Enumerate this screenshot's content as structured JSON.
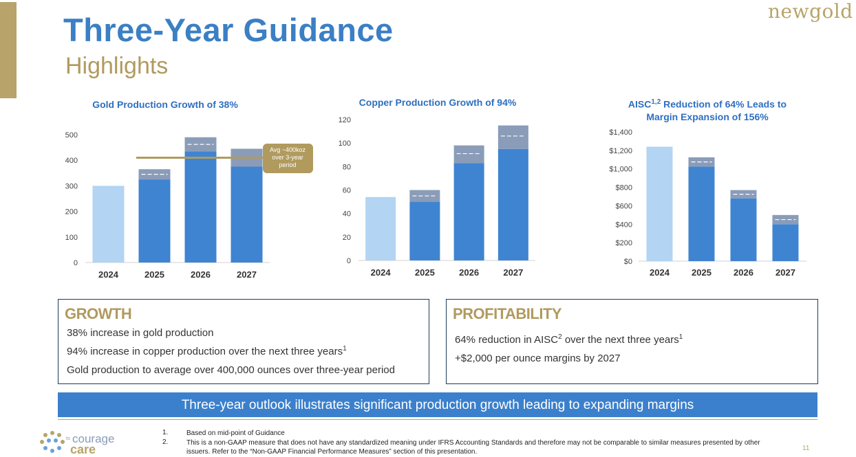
{
  "header": {
    "title": "Three-Year Guidance",
    "subtitle": "Highlights",
    "logo_text": "newgold"
  },
  "chart_data": [
    {
      "type": "bar",
      "title": "Gold Production Growth of 38%",
      "categories": [
        "2024",
        "2025",
        "2026",
        "2027"
      ],
      "ylim": [
        0,
        500
      ],
      "yticks": [
        "0",
        "100",
        "200",
        "300",
        "400",
        "500"
      ],
      "series": [
        {
          "values": [
            300,
            325,
            435,
            375
          ]
        },
        {
          "values": [
            0,
            40,
            55,
            70
          ]
        }
      ],
      "midpoints": [
        null,
        345,
        462,
        410
      ],
      "reference_line": {
        "value": 410,
        "label": [
          "Avg ~400koz",
          "over 3-year",
          "period"
        ]
      },
      "colors": {
        "actual": "#b3d4f2",
        "base": "#3f84d1",
        "range": "#8a9cb8",
        "reference": "#b09a5e"
      }
    },
    {
      "type": "bar",
      "title": "Copper Production Growth of 94%",
      "categories": [
        "2024",
        "2025",
        "2026",
        "2027"
      ],
      "ylim": [
        0,
        120
      ],
      "yticks": [
        "0",
        "20",
        "40",
        "60",
        "80",
        "100",
        "120"
      ],
      "series": [
        {
          "values": [
            54,
            50,
            83,
            95
          ]
        },
        {
          "values": [
            0,
            10,
            15,
            20
          ]
        }
      ],
      "midpoints": [
        null,
        55,
        91,
        106
      ],
      "colors": {
        "actual": "#b3d4f2",
        "base": "#3f84d1",
        "range": "#8a9cb8"
      }
    },
    {
      "type": "bar",
      "title": "AISC1,2 Reduction of 64% Leads to Margin Expansion of 156%",
      "title_lines": [
        "AISC",
        "1,2",
        " Reduction of 64% Leads to",
        "Margin Expansion of 156%"
      ],
      "categories": [
        "2024",
        "2025",
        "2026",
        "2027"
      ],
      "ylim": [
        0,
        1400
      ],
      "yticks": [
        "$0",
        "$200",
        "$400",
        "$600",
        "$800",
        "$1,000",
        "$1,200",
        "$1,400"
      ],
      "series": [
        {
          "values": [
            1240,
            1025,
            680,
            400
          ]
        },
        {
          "values": [
            0,
            100,
            90,
            100
          ]
        }
      ],
      "midpoints": [
        null,
        1075,
        725,
        450
      ],
      "colors": {
        "actual": "#b3d4f2",
        "base": "#3f84d1",
        "range": "#8a9cb8"
      }
    }
  ],
  "growth_box": {
    "heading": "GROWTH",
    "line1": "38% increase in gold production",
    "line2_text": "94% increase in copper production over the next three years",
    "line2_sup": "1",
    "line3": "Gold production to average over 400,000 ounces over three-year period"
  },
  "profit_box": {
    "heading": "PROFITABILITY",
    "line1_a": "64% reduction in AISC",
    "line1_sup1": "2",
    "line1_b": " over the next three years",
    "line1_sup2": "1",
    "line2": "+$2,000 per ounce margins by 2027"
  },
  "banner": "Three-year outlook illustrates significant production growth leading to expanding margins",
  "footnotes": [
    {
      "num": "1.",
      "text": "Based on mid-point of Guidance"
    },
    {
      "num": "2.",
      "text": "This is a non-GAAP measure that does not have any standardized meaning under IFRS Accounting Standards and therefore may not be comparable to similar measures presented by other issuers.  Refer to the “Non-GAAP Financial Performance Measures” section of this presentation."
    }
  ],
  "courage_logo": {
    "small": "to",
    "top": "courage",
    "bottom": "care"
  },
  "page_number": "11"
}
